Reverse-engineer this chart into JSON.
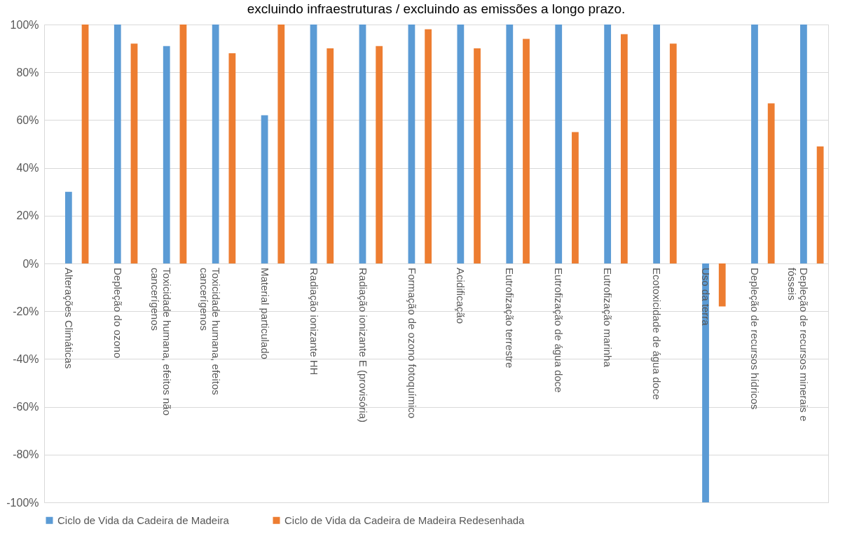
{
  "chart_data": {
    "type": "bar",
    "title": "excluindo infraestruturas / excluindo as emissões a longo prazo.",
    "categories": [
      "Alterações Climáticas",
      "Depleção do ozono",
      "Toxicidade humana, efeitos não cancerígenos",
      "Toxicidade humana, efeitos cancerígenos",
      "Material particulado",
      "Radiação ionizante HH",
      "Radiação ionizante E (provisória)",
      "Formação de ozono fotoquímico",
      "Acidificação",
      "Eutrofização terrestre",
      "Eutrofização de água doce",
      "Eutrofização marinha",
      "Ecotoxicidade de água doce",
      "Uso da terra",
      "Depleção de recursos hídricos",
      "Depleção de recursos minerais e fósseis"
    ],
    "series": [
      {
        "name": "Ciclo de Vida da Cadeira de Madeira",
        "color": "#5b9bd5",
        "values": [
          30,
          100,
          91,
          100,
          62,
          100,
          100,
          100,
          100,
          100,
          100,
          100,
          100,
          -100,
          100,
          100
        ]
      },
      {
        "name": "Ciclo de Vida da Cadeira de Madeira Redesenhada",
        "color": "#ed7d31",
        "values": [
          100,
          92,
          100,
          88,
          100,
          90,
          91,
          98,
          90,
          94,
          55,
          96,
          92,
          -18,
          67,
          49
        ]
      }
    ],
    "ylim": [
      -100,
      100
    ],
    "yticks": [
      {
        "value": -100,
        "label": "-100%"
      },
      {
        "value": -80,
        "label": "-80%"
      },
      {
        "value": -60,
        "label": "-60%"
      },
      {
        "value": -40,
        "label": "-40%"
      },
      {
        "value": -20,
        "label": "-20%"
      },
      {
        "value": 0,
        "label": "0%"
      },
      {
        "value": 20,
        "label": "20%"
      },
      {
        "value": 40,
        "label": "40%"
      },
      {
        "value": 60,
        "label": "60%"
      },
      {
        "value": 80,
        "label": "80%"
      },
      {
        "value": 100,
        "label": "100%"
      }
    ],
    "grid": "y",
    "legend": "bottom"
  }
}
